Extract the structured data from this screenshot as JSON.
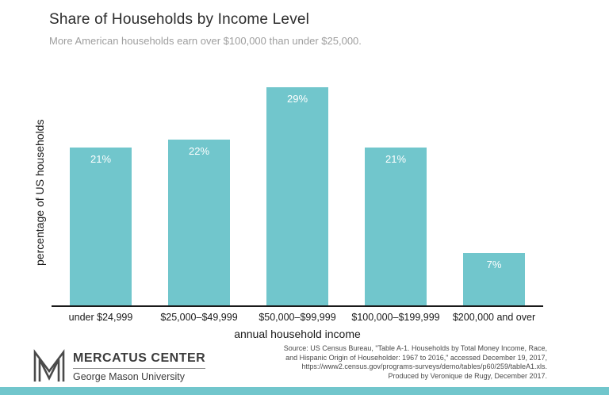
{
  "chart_data": {
    "type": "bar",
    "title": "Share of Households by Income Level",
    "subtitle": "More American households earn over $100,000 than under $25,000.",
    "categories": [
      "under $24,999",
      "$25,000–$49,999",
      "$50,000–$99,999",
      "$100,000–$199,999",
      "$200,000 and over"
    ],
    "values": [
      21,
      22,
      29,
      21,
      7
    ],
    "value_labels": [
      "21%",
      "22%",
      "29%",
      "21%",
      "7%"
    ],
    "xlabel": "annual household income",
    "ylabel": "percentage of US households",
    "ylim": [
      0,
      30
    ],
    "grid": false,
    "legend": "none",
    "bar_color": "#71c6cc"
  },
  "footer": {
    "logo_title": "MERCATUS CENTER",
    "logo_subtitle": "George Mason University",
    "source_lines": [
      "Source: US Census Bureau, \"Table A-1. Households by Total Money Income, Race,",
      "and Hispanic Origin of Householder: 1967 to 2016,\" accessed December 19, 2017,",
      "https://www2.census.gov/programs-surveys/demo/tables/p60/259/tableA1.xls.",
      "Produced by Veronique de Rugy, December 2017."
    ]
  },
  "colors": {
    "accent_teal": "#71c6cc",
    "title_text": "#2b2b2b",
    "subtitle_text": "#9e9e9e",
    "axis_text": "#1a1a1a",
    "source_text": "#4a4a4a"
  }
}
